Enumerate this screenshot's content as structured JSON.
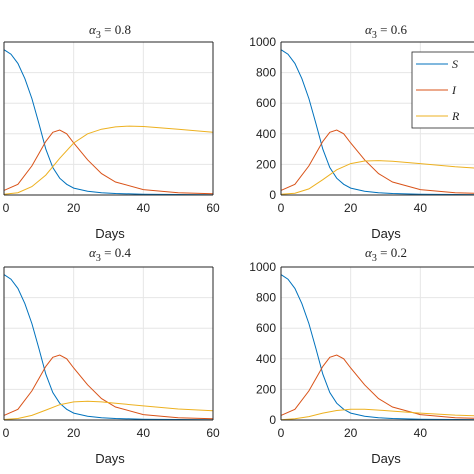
{
  "colors": {
    "S": "#0072BD",
    "I": "#D95319",
    "R": "#EDB120",
    "grid": "#e6e6e6",
    "axis": "#262626"
  },
  "chart_data": [
    {
      "type": "line",
      "title_greek": "α",
      "title_sub": "3",
      "title_value": " = 0.8",
      "xlabel": "Days",
      "xlim": [
        0,
        60
      ],
      "ylim": [
        0,
        1000
      ],
      "xticks": [
        0,
        20,
        40,
        60
      ],
      "yticks": [
        0,
        200,
        400,
        600,
        800,
        1000
      ],
      "xticklabels": [
        "0",
        "20",
        "40",
        "60"
      ],
      "yticklabels": [],
      "grid": true,
      "series": [
        {
          "key": "S",
          "x": [
            0,
            2,
            4,
            6,
            8,
            10,
            12,
            14,
            16,
            18,
            20,
            24,
            28,
            32,
            40,
            50,
            60
          ],
          "y": [
            950,
            920,
            860,
            760,
            630,
            470,
            300,
            180,
            110,
            70,
            45,
            25,
            15,
            10,
            5,
            3,
            2
          ]
        },
        {
          "key": "I",
          "x": [
            0,
            4,
            8,
            10,
            12,
            14,
            16,
            18,
            20,
            24,
            28,
            32,
            40,
            50,
            60
          ],
          "y": [
            30,
            70,
            190,
            270,
            350,
            410,
            425,
            400,
            340,
            230,
            140,
            85,
            35,
            15,
            8
          ]
        },
        {
          "key": "R",
          "x": [
            0,
            4,
            8,
            12,
            16,
            20,
            24,
            28,
            32,
            36,
            40,
            50,
            60
          ],
          "y": [
            5,
            15,
            55,
            130,
            240,
            340,
            400,
            430,
            445,
            450,
            448,
            430,
            410
          ]
        }
      ]
    },
    {
      "type": "line",
      "title_greek": "α",
      "title_sub": "3",
      "title_value": " = 0.6",
      "xlabel": "Days",
      "xlim": [
        0,
        60
      ],
      "ylim": [
        0,
        1000
      ],
      "xticks": [
        0,
        20,
        40,
        60
      ],
      "yticks": [
        0,
        200,
        400,
        600,
        800,
        1000
      ],
      "xticklabels": [
        "0",
        "20",
        "40",
        ""
      ],
      "yticklabels": [
        "0",
        "200",
        "400",
        "600",
        "800",
        "1000"
      ],
      "grid": true,
      "legend": {
        "placement": "top-right",
        "entries": [
          "S",
          "I",
          "R"
        ]
      },
      "series": [
        {
          "key": "S",
          "x": [
            0,
            2,
            4,
            6,
            8,
            10,
            12,
            14,
            16,
            18,
            20,
            24,
            28,
            32,
            40,
            50,
            60
          ],
          "y": [
            950,
            920,
            860,
            760,
            630,
            470,
            300,
            180,
            110,
            70,
            45,
            25,
            15,
            10,
            5,
            3,
            2
          ]
        },
        {
          "key": "I",
          "x": [
            0,
            4,
            8,
            10,
            12,
            14,
            16,
            18,
            20,
            24,
            28,
            32,
            40,
            50,
            60
          ],
          "y": [
            30,
            70,
            190,
            270,
            350,
            410,
            425,
            400,
            340,
            230,
            140,
            85,
            35,
            15,
            8
          ]
        },
        {
          "key": "R",
          "x": [
            0,
            4,
            8,
            12,
            16,
            20,
            24,
            28,
            32,
            40,
            50,
            60
          ],
          "y": [
            5,
            12,
            40,
            100,
            165,
            205,
            222,
            225,
            220,
            205,
            185,
            170
          ]
        }
      ]
    },
    {
      "type": "line",
      "title_greek": "α",
      "title_sub": "3",
      "title_value": " = 0.4",
      "xlabel": "Days",
      "xlim": [
        0,
        60
      ],
      "ylim": [
        0,
        1000
      ],
      "xticks": [
        0,
        20,
        40,
        60
      ],
      "yticks": [
        0,
        200,
        400,
        600,
        800,
        1000
      ],
      "xticklabels": [
        "0",
        "20",
        "40",
        "60"
      ],
      "yticklabels": [],
      "grid": true,
      "series": [
        {
          "key": "S",
          "x": [
            0,
            2,
            4,
            6,
            8,
            10,
            12,
            14,
            16,
            18,
            20,
            24,
            28,
            32,
            40,
            50,
            60
          ],
          "y": [
            950,
            920,
            860,
            760,
            630,
            470,
            300,
            180,
            110,
            70,
            45,
            25,
            15,
            10,
            5,
            3,
            2
          ]
        },
        {
          "key": "I",
          "x": [
            0,
            4,
            8,
            10,
            12,
            14,
            16,
            18,
            20,
            24,
            28,
            32,
            40,
            50,
            60
          ],
          "y": [
            30,
            70,
            190,
            270,
            350,
            410,
            425,
            400,
            340,
            230,
            140,
            85,
            35,
            15,
            8
          ]
        },
        {
          "key": "R",
          "x": [
            0,
            4,
            8,
            12,
            16,
            20,
            24,
            28,
            32,
            40,
            50,
            60
          ],
          "y": [
            3,
            10,
            30,
            65,
            100,
            118,
            122,
            118,
            110,
            92,
            72,
            60
          ]
        }
      ]
    },
    {
      "type": "line",
      "title_greek": "α",
      "title_sub": "3",
      "title_value": " = 0.2",
      "xlabel": "Days",
      "xlim": [
        0,
        60
      ],
      "ylim": [
        0,
        1000
      ],
      "xticks": [
        0,
        20,
        40,
        60
      ],
      "yticks": [
        0,
        200,
        400,
        600,
        800,
        1000
      ],
      "xticklabels": [
        "0",
        "20",
        "40",
        ""
      ],
      "yticklabels": [
        "0",
        "200",
        "400",
        "600",
        "800",
        "1000"
      ],
      "grid": true,
      "series": [
        {
          "key": "S",
          "x": [
            0,
            2,
            4,
            6,
            8,
            10,
            12,
            14,
            16,
            18,
            20,
            24,
            28,
            32,
            40,
            50,
            60
          ],
          "y": [
            950,
            920,
            860,
            760,
            630,
            470,
            300,
            180,
            110,
            70,
            45,
            25,
            15,
            10,
            5,
            3,
            2
          ]
        },
        {
          "key": "I",
          "x": [
            0,
            4,
            8,
            10,
            12,
            14,
            16,
            18,
            20,
            24,
            28,
            32,
            40,
            50,
            60
          ],
          "y": [
            30,
            70,
            190,
            270,
            350,
            410,
            425,
            400,
            340,
            230,
            140,
            85,
            35,
            15,
            8
          ]
        },
        {
          "key": "R",
          "x": [
            0,
            4,
            8,
            12,
            16,
            20,
            24,
            28,
            32,
            40,
            50,
            60
          ],
          "y": [
            2,
            8,
            22,
            45,
            62,
            70,
            70,
            65,
            58,
            45,
            32,
            25
          ]
        }
      ]
    }
  ]
}
